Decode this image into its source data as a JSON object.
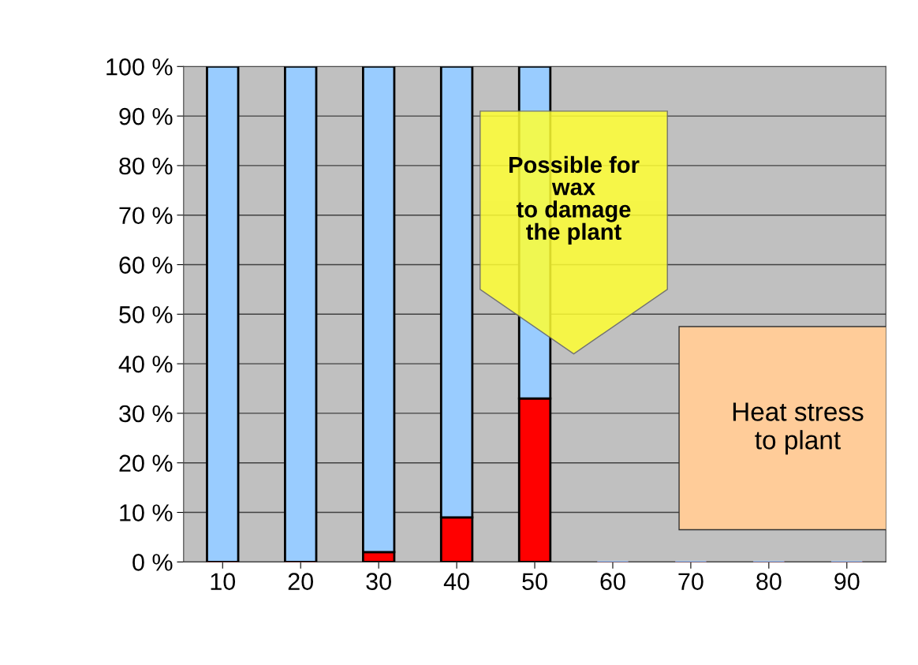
{
  "chart_data": {
    "type": "bar",
    "stacked": true,
    "categories": [
      "10",
      "20",
      "30",
      "40",
      "50",
      "60",
      "70",
      "80",
      "90"
    ],
    "series": [
      {
        "color": "#ff0000",
        "values": [
          0,
          0,
          2,
          9,
          33,
          0,
          0,
          0,
          0
        ]
      },
      {
        "color": "#99ccff",
        "values": [
          100,
          100,
          98,
          91,
          67,
          0,
          0,
          0,
          0
        ]
      }
    ],
    "ylim": [
      0,
      100
    ],
    "yticks": [
      {
        "value": 0,
        "label": "0 %"
      },
      {
        "value": 10,
        "label": "10 %"
      },
      {
        "value": 20,
        "label": "20 %"
      },
      {
        "value": 30,
        "label": "30 %"
      },
      {
        "value": 40,
        "label": "40 %"
      },
      {
        "value": 50,
        "label": "50 %"
      },
      {
        "value": 60,
        "label": "60 %"
      },
      {
        "value": 70,
        "label": "70 %"
      },
      {
        "value": 80,
        "label": "80 %"
      },
      {
        "value": 90,
        "label": "90 %"
      },
      {
        "value": 100,
        "label": "100 %"
      }
    ],
    "grid": "y",
    "annotations": [
      "Possible for\nwax\nto damage\nthe plant",
      "Heat stress\nto plant"
    ]
  }
}
